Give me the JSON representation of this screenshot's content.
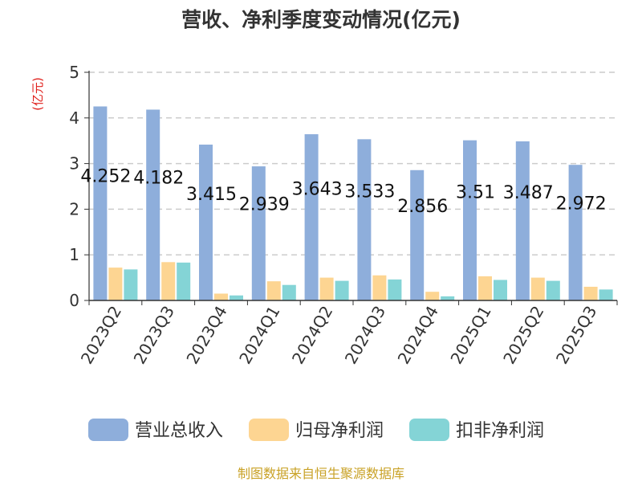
{
  "chart_data": {
    "type": "bar",
    "title": "营收、净利季度变动情况(亿元)",
    "ylabel": "(亿元)",
    "ylim": [
      0,
      5
    ],
    "yticks": [
      0,
      1,
      2,
      3,
      4,
      5
    ],
    "grid": true,
    "legend_position": "bottom",
    "categories": [
      "2023Q2",
      "2023Q3",
      "2023Q4",
      "2024Q1",
      "2024Q2",
      "2024Q3",
      "2024Q4",
      "2025Q1",
      "2025Q2",
      "2025Q3"
    ],
    "series": [
      {
        "name": "营业总收入",
        "color": "#8eaedb",
        "values": [
          4.252,
          4.182,
          3.415,
          2.939,
          3.643,
          3.533,
          2.856,
          3.51,
          3.487,
          2.972
        ],
        "data_labels": [
          "4.252",
          "4.182",
          "3.415",
          "2.939",
          "3.643",
          "3.533",
          "2.856",
          "3.51",
          "3.487",
          "2.972"
        ]
      },
      {
        "name": "归母净利润",
        "color": "#fdd592",
        "values": [
          0.72,
          0.84,
          0.15,
          0.42,
          0.5,
          0.55,
          0.19,
          0.53,
          0.5,
          0.3
        ]
      },
      {
        "name": "扣非净利润",
        "color": "#84d4d6",
        "values": [
          0.68,
          0.83,
          0.11,
          0.34,
          0.43,
          0.46,
          0.09,
          0.45,
          0.43,
          0.24
        ]
      }
    ],
    "source": "制图数据来自恒生聚源数据库"
  }
}
